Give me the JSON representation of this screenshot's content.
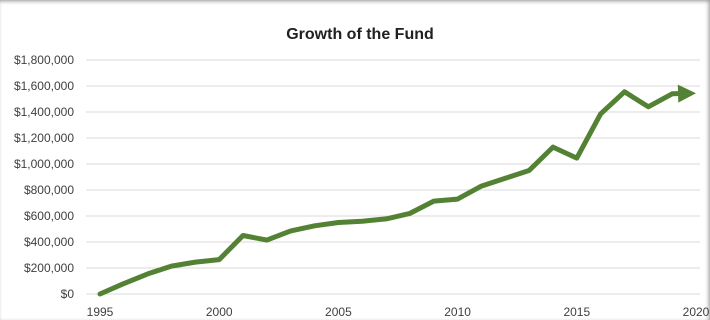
{
  "chart_data": {
    "type": "line",
    "title": "Growth of the Fund",
    "xlabel": "",
    "ylabel": "",
    "xlim": [
      1995,
      2020
    ],
    "ylim": [
      0,
      1800000
    ],
    "x_ticks": [
      "1995",
      "2000",
      "2005",
      "2010",
      "2015",
      "2020"
    ],
    "x_tick_values": [
      1995,
      2000,
      2005,
      2010,
      2015,
      2020
    ],
    "y_ticks": [
      "$0",
      "$200,000",
      "$400,000",
      "$600,000",
      "$800,000",
      "$1,000,000",
      "$1,200,000",
      "$1,400,000",
      "$1,600,000",
      "$1,800,000"
    ],
    "y_tick_values": [
      0,
      200000,
      400000,
      600000,
      800000,
      1000000,
      1200000,
      1400000,
      1600000,
      1800000
    ],
    "grid": "horizontal",
    "legend": "none",
    "line_color": "#548235",
    "end_marker": "arrow",
    "series": [
      {
        "x": [
          1995,
          1996,
          1997,
          1998,
          1999,
          2000,
          2001,
          2002,
          2003,
          2004,
          2005,
          2006,
          2007,
          2008,
          2009,
          2010,
          2011,
          2012,
          2013,
          2014,
          2015,
          2016,
          2017,
          2018,
          2019,
          2020
        ],
        "values": [
          0,
          80000,
          155000,
          215000,
          245000,
          265000,
          450000,
          415000,
          485000,
          525000,
          550000,
          560000,
          578000,
          620000,
          715000,
          730000,
          830000,
          890000,
          950000,
          1130000,
          1045000,
          1385000,
          1555000,
          1440000,
          1540000,
          1545000
        ]
      }
    ]
  }
}
